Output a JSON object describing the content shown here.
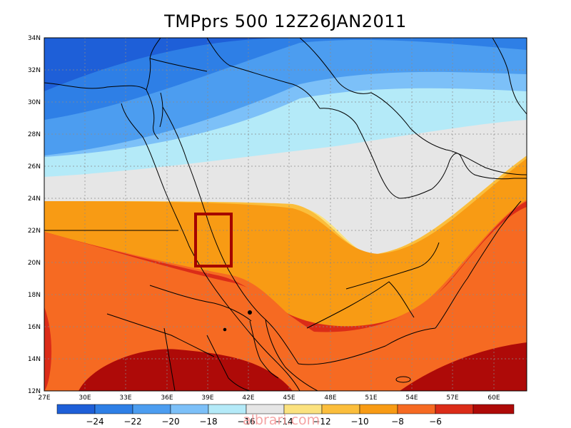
{
  "title": "TMPprs 500  12Z26JAN2011",
  "lat_labels": [
    "34N",
    "32N",
    "30N",
    "28N",
    "26N",
    "24N",
    "22N",
    "20N",
    "18N",
    "16N",
    "14N",
    "12N"
  ],
  "lon_labels": [
    "27E",
    "30E",
    "33E",
    "36E",
    "39E",
    "42E",
    "45E",
    "48E",
    "51E",
    "54E",
    "57E",
    "60E"
  ],
  "lon_range": [
    27,
    63
  ],
  "lat_range": [
    12,
    34
  ],
  "contour_levels": [
    -24,
    -22,
    -20,
    -18,
    -16,
    -14,
    -12,
    -10,
    -8,
    -6
  ],
  "colorbar": {
    "labels": [
      "-24",
      "-22",
      "-20",
      "-18",
      "-16",
      "-14",
      "-12",
      "-10",
      "-8",
      "-6"
    ],
    "colors": [
      "#1e5fd8",
      "#2e7fe6",
      "#4c9df0",
      "#7cc0f8",
      "#b4eaf8",
      "#e6e6e6",
      "#fbe27f",
      "#fbbe3c",
      "#f89b14",
      "#f66a22",
      "#db2c18",
      "#ae0a08"
    ]
  },
  "highlight_box": {
    "lon_range": [
      38,
      40.5
    ],
    "lat_range": [
      19.8,
      23
    ],
    "color": "#a40000"
  },
  "watermark": "albrari.com"
}
